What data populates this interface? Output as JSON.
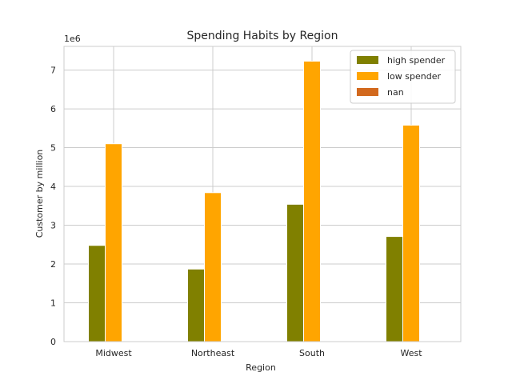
{
  "chart_data": {
    "type": "bar",
    "title": "Spending Habits by Region",
    "xlabel": "Region",
    "ylabel": "Customer by million",
    "offset_text": "1e6",
    "scale": 1000000,
    "categories": [
      "Midwest",
      "Northeast",
      "South",
      "West"
    ],
    "series": [
      {
        "name": "high spender",
        "color": "#808000",
        "values": [
          2480000,
          1870000,
          3540000,
          2710000
        ]
      },
      {
        "name": "low spender",
        "color": "#FFA500",
        "values": [
          5100000,
          3840000,
          7230000,
          5580000
        ]
      },
      {
        "name": "nan",
        "color": "#D2691E",
        "values": [
          0,
          0,
          0,
          0
        ]
      }
    ],
    "ylim": [
      0,
      7610000
    ],
    "yticks": [
      0,
      1,
      2,
      3,
      4,
      5,
      6,
      7
    ],
    "grid": true,
    "legend_position": "upper right"
  }
}
